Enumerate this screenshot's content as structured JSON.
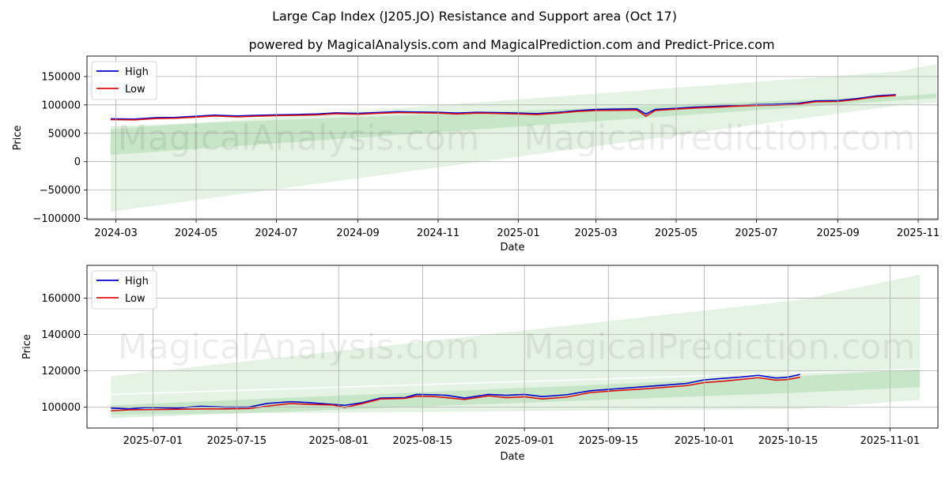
{
  "title": "Large Cap Index (J205.JO) Resistance and Support area (Oct 17)",
  "subtitle": "powered by MagicalAnalysis.com and MagicalPrediction.com and Predict-Price.com",
  "watermark": "MagicalAnalysis.com    MagicalPrediction.com",
  "colors": {
    "high": "#0000cc",
    "low": "#dd1111",
    "band": "#2ca02c",
    "grid": "#b0b0b0"
  },
  "chart_data": [
    {
      "type": "line",
      "xlabel": "Date",
      "ylabel": "Price",
      "x_type": "date",
      "xlim": [
        "2024-02-08",
        "2025-11-16"
      ],
      "ylim": [
        -102000,
        186000
      ],
      "x_ticks": [
        "2024-03",
        "2024-05",
        "2024-07",
        "2024-09",
        "2024-11",
        "2025-01",
        "2025-03",
        "2025-05",
        "2025-07",
        "2025-09",
        "2025-11"
      ],
      "x_tick_dates": [
        "2024-03-01",
        "2024-05-01",
        "2024-07-01",
        "2024-09-01",
        "2024-11-01",
        "2025-01-01",
        "2025-03-01",
        "2025-05-01",
        "2025-07-01",
        "2025-09-01",
        "2025-11-01"
      ],
      "y_ticks": [
        -100000,
        -50000,
        0,
        50000,
        100000,
        150000
      ],
      "y_tick_labels": [
        "−100000",
        "−50000",
        "0",
        "50000",
        "100000",
        "150000"
      ],
      "grid": true,
      "legend": "top-left",
      "series": [
        {
          "name": "High",
          "x": [
            "2024-02-26",
            "2024-03-15",
            "2024-04-01",
            "2024-04-15",
            "2024-05-01",
            "2024-05-15",
            "2024-06-01",
            "2024-06-15",
            "2024-07-01",
            "2024-07-15",
            "2024-08-01",
            "2024-08-15",
            "2024-09-01",
            "2024-09-15",
            "2024-10-01",
            "2024-10-15",
            "2024-11-01",
            "2024-11-15",
            "2024-12-01",
            "2024-12-15",
            "2025-01-01",
            "2025-01-15",
            "2025-02-01",
            "2025-02-15",
            "2025-03-01",
            "2025-03-15",
            "2025-04-01",
            "2025-04-08",
            "2025-04-15",
            "2025-05-01",
            "2025-05-15",
            "2025-06-01",
            "2025-06-15",
            "2025-07-01",
            "2025-07-15",
            "2025-08-01",
            "2025-08-15",
            "2025-09-01",
            "2025-09-15",
            "2025-10-01",
            "2025-10-15"
          ],
          "values": [
            75500,
            75000,
            77500,
            78000,
            80000,
            82000,
            80500,
            81500,
            82500,
            83000,
            84000,
            86000,
            85000,
            86500,
            88000,
            87500,
            87000,
            85500,
            87000,
            86500,
            85500,
            84500,
            87000,
            90000,
            92000,
            92500,
            93000,
            84000,
            92000,
            94000,
            96000,
            97500,
            99000,
            100500,
            101000,
            102500,
            107000,
            107500,
            111000,
            116000,
            118000
          ]
        },
        {
          "name": "Low",
          "x": [
            "2024-02-26",
            "2024-03-15",
            "2024-04-01",
            "2024-04-15",
            "2024-05-01",
            "2024-05-15",
            "2024-06-01",
            "2024-06-15",
            "2024-07-01",
            "2024-07-15",
            "2024-08-01",
            "2024-08-15",
            "2024-09-01",
            "2024-09-15",
            "2024-10-01",
            "2024-10-15",
            "2024-11-01",
            "2024-11-15",
            "2024-12-01",
            "2024-12-15",
            "2025-01-01",
            "2025-01-15",
            "2025-02-01",
            "2025-02-15",
            "2025-03-01",
            "2025-03-15",
            "2025-04-01",
            "2025-04-08",
            "2025-04-15",
            "2025-05-01",
            "2025-05-15",
            "2025-06-01",
            "2025-06-15",
            "2025-07-01",
            "2025-07-15",
            "2025-08-01",
            "2025-08-15",
            "2025-09-01",
            "2025-09-15",
            "2025-10-01",
            "2025-10-15"
          ],
          "values": [
            74000,
            73500,
            76000,
            76500,
            78500,
            80500,
            79000,
            80000,
            81000,
            81500,
            82500,
            84500,
            83500,
            85000,
            86500,
            86000,
            85500,
            84000,
            85500,
            85000,
            84000,
            83000,
            85500,
            88500,
            90000,
            90500,
            91000,
            80000,
            90000,
            92500,
            94500,
            96000,
            97500,
            99000,
            99500,
            101000,
            105500,
            106000,
            109500,
            114500,
            116500
          ]
        }
      ],
      "bands": [
        {
          "x": [
            "2024-02-26",
            "2025-10-17",
            "2025-11-15"
          ],
          "lower": [
            -88000,
            99000,
            104000
          ],
          "upper": [
            57000,
            159000,
            172000
          ]
        },
        {
          "x": [
            "2024-02-26",
            "2025-10-17",
            "2025-11-15"
          ],
          "lower": [
            12000,
            108000,
            112000
          ],
          "upper": [
            62000,
            115000,
            120000
          ]
        }
      ]
    },
    {
      "type": "line",
      "xlabel": "Date",
      "ylabel": "Price",
      "x_type": "date",
      "xlim": [
        "2025-06-20",
        "2025-11-09"
      ],
      "ylim": [
        88500,
        178000
      ],
      "x_ticks": [
        "2025-07-01",
        "2025-07-15",
        "2025-08-01",
        "2025-08-15",
        "2025-09-01",
        "2025-09-15",
        "2025-10-01",
        "2025-10-15",
        "2025-11-01"
      ],
      "x_tick_dates": [
        "2025-07-01",
        "2025-07-15",
        "2025-08-01",
        "2025-08-15",
        "2025-09-01",
        "2025-09-15",
        "2025-10-01",
        "2025-10-15",
        "2025-11-01"
      ],
      "y_ticks": [
        100000,
        120000,
        140000,
        160000
      ],
      "y_tick_labels": [
        "100000",
        "120000",
        "140000",
        "160000"
      ],
      "grid": true,
      "legend": "top-left",
      "series": [
        {
          "name": "High",
          "x": [
            "2025-06-24",
            "2025-06-27",
            "2025-06-30",
            "2025-07-02",
            "2025-07-05",
            "2025-07-09",
            "2025-07-13",
            "2025-07-17",
            "2025-07-20",
            "2025-07-24",
            "2025-07-27",
            "2025-07-31",
            "2025-08-02",
            "2025-08-05",
            "2025-08-08",
            "2025-08-12",
            "2025-08-14",
            "2025-08-17",
            "2025-08-19",
            "2025-08-22",
            "2025-08-26",
            "2025-08-29",
            "2025-09-01",
            "2025-09-04",
            "2025-09-08",
            "2025-09-12",
            "2025-09-16",
            "2025-09-20",
            "2025-09-24",
            "2025-09-28",
            "2025-10-01",
            "2025-10-04",
            "2025-10-07",
            "2025-10-10",
            "2025-10-13",
            "2025-10-15",
            "2025-10-17"
          ],
          "values": [
            99500,
            99000,
            99800,
            99700,
            99500,
            100500,
            100000,
            100000,
            102000,
            103000,
            102500,
            101500,
            101000,
            102500,
            105000,
            105200,
            107000,
            106800,
            106500,
            105000,
            107000,
            106500,
            107000,
            105800,
            106800,
            109000,
            110000,
            111000,
            112000,
            113000,
            115000,
            115800,
            116500,
            117500,
            116000,
            116500,
            118000
          ]
        },
        {
          "name": "Low",
          "x": [
            "2025-06-24",
            "2025-06-27",
            "2025-06-30",
            "2025-07-02",
            "2025-07-05",
            "2025-07-09",
            "2025-07-13",
            "2025-07-17",
            "2025-07-20",
            "2025-07-24",
            "2025-07-27",
            "2025-07-31",
            "2025-08-02",
            "2025-08-05",
            "2025-08-08",
            "2025-08-12",
            "2025-08-14",
            "2025-08-17",
            "2025-08-19",
            "2025-08-22",
            "2025-08-26",
            "2025-08-29",
            "2025-09-01",
            "2025-09-04",
            "2025-09-08",
            "2025-09-12",
            "2025-09-16",
            "2025-09-20",
            "2025-09-24",
            "2025-09-28",
            "2025-10-01",
            "2025-10-04",
            "2025-10-07",
            "2025-10-10",
            "2025-10-13",
            "2025-10-15",
            "2025-10-17"
          ],
          "values": [
            98000,
            98500,
            98600,
            98700,
            98800,
            99000,
            99000,
            99200,
            100500,
            102000,
            101500,
            101200,
            99800,
            102000,
            104500,
            104800,
            106000,
            105800,
            105200,
            104200,
            106200,
            105200,
            105700,
            104500,
            105500,
            108000,
            109000,
            109800,
            110800,
            111800,
            113500,
            114200,
            115200,
            116200,
            114800,
            115200,
            116500
          ]
        }
      ],
      "bands": [
        {
          "x": [
            "2025-06-24",
            "2025-10-17",
            "2025-11-06"
          ],
          "lower": [
            96000,
            99000,
            104000
          ],
          "upper": [
            117000,
            159000,
            173000
          ]
        },
        {
          "x": [
            "2025-06-24",
            "2025-10-17",
            "2025-11-06"
          ],
          "lower": [
            94000,
            108000,
            111000
          ],
          "upper": [
            101000,
            117000,
            121000
          ]
        }
      ],
      "refline": {
        "x": [
          "2025-06-24",
          "2025-11-06"
        ],
        "y": [
          107000,
          121000
        ]
      }
    }
  ]
}
